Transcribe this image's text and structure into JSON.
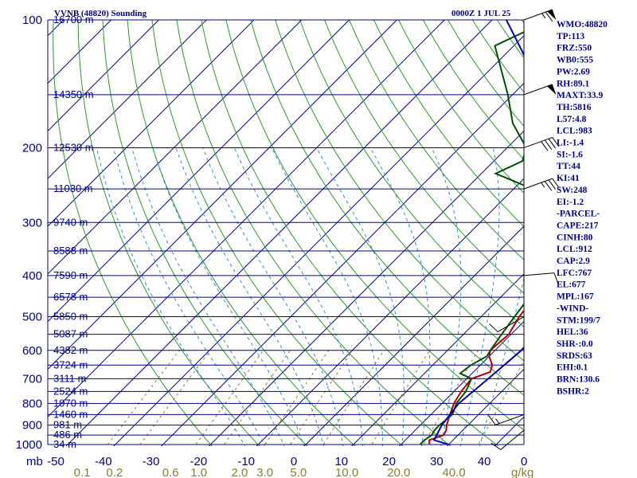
{
  "header": {
    "station": "VVNB (48820) Sounding",
    "time": "0000Z  1 JUL 25"
  },
  "chart_data": {
    "type": "line",
    "title": "VVNB (48820) Sounding",
    "subtitle": "0000Z  1 JUL 25",
    "xlabel": "",
    "ylabel": "mb",
    "pressure_axis": {
      "log_scale": true,
      "range_mb": [
        1000,
        100
      ]
    },
    "temp_range_c": [
      -50,
      50
    ],
    "pressure_levels": [
      {
        "p": 100,
        "label": "100",
        "height": "16700 m"
      },
      {
        "p": 150,
        "label": "",
        "height": "14350 m"
      },
      {
        "p": 200,
        "label": "200",
        "height": "12530 m"
      },
      {
        "p": 250,
        "label": "",
        "height": "11030 m"
      },
      {
        "p": 300,
        "label": "300",
        "height": "9740 m"
      },
      {
        "p": 350,
        "label": "",
        "height": "8588 m"
      },
      {
        "p": 400,
        "label": "400",
        "height": "7590 m"
      },
      {
        "p": 450,
        "label": "",
        "height": "6578 m"
      },
      {
        "p": 500,
        "label": "500",
        "height": "5850 m"
      },
      {
        "p": 550,
        "label": "",
        "height": "5087 m"
      },
      {
        "p": 600,
        "label": "600",
        "height": "4382 m"
      },
      {
        "p": 650,
        "label": "",
        "height": "3724 m"
      },
      {
        "p": 700,
        "label": "700",
        "height": "3111 m"
      },
      {
        "p": 750,
        "label": "",
        "height": "2524 m"
      },
      {
        "p": 800,
        "label": "800",
        "height": "1970 m"
      },
      {
        "p": 850,
        "label": "",
        "height": "1460 m"
      },
      {
        "p": 900,
        "label": "900",
        "height": "981 m"
      },
      {
        "p": 950,
        "label": "",
        "height": "486 m"
      },
      {
        "p": 1000,
        "label": "1000",
        "height": "34 m"
      }
    ],
    "temp_ticks": [
      "-50",
      "-40",
      "-30",
      "-20",
      "-10",
      "0",
      "10",
      "20",
      "30",
      "40"
    ],
    "mixing_ratio_ticks": [
      "0.1",
      "0.2",
      "0.6",
      "1.0",
      "2.0",
      "3.0",
      "5.0",
      "10.0",
      "20.0",
      "40.0"
    ],
    "mixing_ratio_unit": "g/kg",
    "series": [
      {
        "color": "#b00000",
        "points": [
          [
            1000,
            26
          ],
          [
            976,
            25
          ],
          [
            950,
            27
          ],
          [
            925,
            26.5
          ],
          [
            900,
            25.5
          ],
          [
            850,
            24
          ],
          [
            800,
            22.5
          ],
          [
            750,
            21.5
          ],
          [
            700,
            21
          ],
          [
            675,
            23.5
          ],
          [
            650,
            22.5
          ],
          [
            620,
            20
          ],
          [
            600,
            19
          ],
          [
            550,
            19.5
          ],
          [
            500,
            18
          ],
          [
            450,
            17
          ],
          [
            400,
            15
          ],
          [
            350,
            12
          ],
          [
            300,
            9
          ],
          [
            250,
            5
          ],
          [
            200,
            -1
          ],
          [
            150,
            -9
          ],
          [
            125,
            -13
          ],
          [
            115,
            -14
          ],
          [
            100,
            -13
          ]
        ]
      },
      {
        "color": "#005000",
        "points": [
          [
            1000,
            24
          ],
          [
            976,
            24
          ],
          [
            950,
            24.5
          ],
          [
            925,
            24
          ],
          [
            900,
            24
          ],
          [
            850,
            24.5
          ],
          [
            800,
            23
          ],
          [
            750,
            22.5
          ],
          [
            700,
            21
          ],
          [
            680,
            17.5
          ],
          [
            650,
            18
          ],
          [
            620,
            19.5
          ],
          [
            600,
            19
          ],
          [
            550,
            18
          ],
          [
            500,
            17
          ],
          [
            450,
            16
          ],
          [
            400,
            14.5
          ],
          [
            350,
            10
          ],
          [
            300,
            4.5
          ],
          [
            275,
            0
          ],
          [
            260,
            -2
          ],
          [
            250,
            -6
          ],
          [
            230,
            -17
          ],
          [
            215,
            -14
          ],
          [
            200,
            -16
          ],
          [
            175,
            -24
          ],
          [
            150,
            -31
          ],
          [
            130,
            -38
          ],
          [
            115,
            -44
          ],
          [
            105,
            -40
          ],
          [
            100,
            -35
          ]
        ]
      },
      {
        "color": "#0000b0",
        "points": [
          [
            1000,
            30
          ],
          [
            976,
            26
          ],
          [
            950,
            25.5
          ],
          [
            900,
            24.5
          ],
          [
            850,
            24
          ],
          [
            800,
            23.5
          ],
          [
            750,
            24
          ],
          [
            700,
            24.5
          ],
          [
            650,
            25
          ],
          [
            600,
            25.5
          ],
          [
            550,
            25
          ],
          [
            500,
            24
          ],
          [
            450,
            20
          ],
          [
            400,
            15
          ],
          [
            350,
            11
          ],
          [
            300,
            6
          ],
          [
            250,
            -1.5
          ],
          [
            200,
            -11
          ],
          [
            175,
            -17
          ],
          [
            150,
            -24
          ],
          [
            125,
            -34
          ],
          [
            100,
            -47
          ]
        ]
      }
    ],
    "wind_barbs": [
      {
        "p": 100,
        "dir": 70,
        "kt": 65
      },
      {
        "p": 150,
        "dir": 70,
        "kt": 50
      },
      {
        "p": 200,
        "dir": 70,
        "kt": 40
      },
      {
        "p": 250,
        "dir": 70,
        "kt": 35
      },
      {
        "p": 400,
        "dir": 85,
        "kt": 10
      },
      {
        "p": 500,
        "dir": 240,
        "kt": 10
      },
      {
        "p": 850,
        "dir": 250,
        "kt": 15
      },
      {
        "p": 925,
        "dir": 230,
        "kt": 10
      }
    ]
  },
  "indices": [
    "WMO:48820",
    "TP:113",
    "FRZ:550",
    "WB0:555",
    "PW:2.69",
    "RH:89.1",
    "MAXT:33.9",
    "TH:5816",
    "L57:4.8",
    "LCL:983",
    "LI:-1.4",
    "SI:-1.6",
    "TT:44",
    "KI:41",
    "SW:248",
    "EI:-1.2",
    "-PARCEL-",
    "CAPE:217",
    "CINH:80",
    "LCL:912",
    "CAP:2.9",
    "LFC:767",
    "EL:677",
    "MPL:167",
    "-WIND-",
    "STM:199/7",
    "HEL:36",
    "SHR-:0.0",
    "SRDS:63",
    "EHI:0.1",
    "BRN:130.6",
    "BSHR:2"
  ],
  "colors": {
    "isobar": "#00008b",
    "isotherm": "#00008b",
    "dry_adiabat": "#2a9a2a",
    "moist_adiabat": "#2b8fd0",
    "mixing_ratio": "#8b7d2b",
    "temperature": "#b00000",
    "dewpoint": "#005000",
    "parcel": "#0000b0"
  },
  "legend_unit_label": "mb",
  "zero_label": "0",
  "gkg_label": "g/kg"
}
